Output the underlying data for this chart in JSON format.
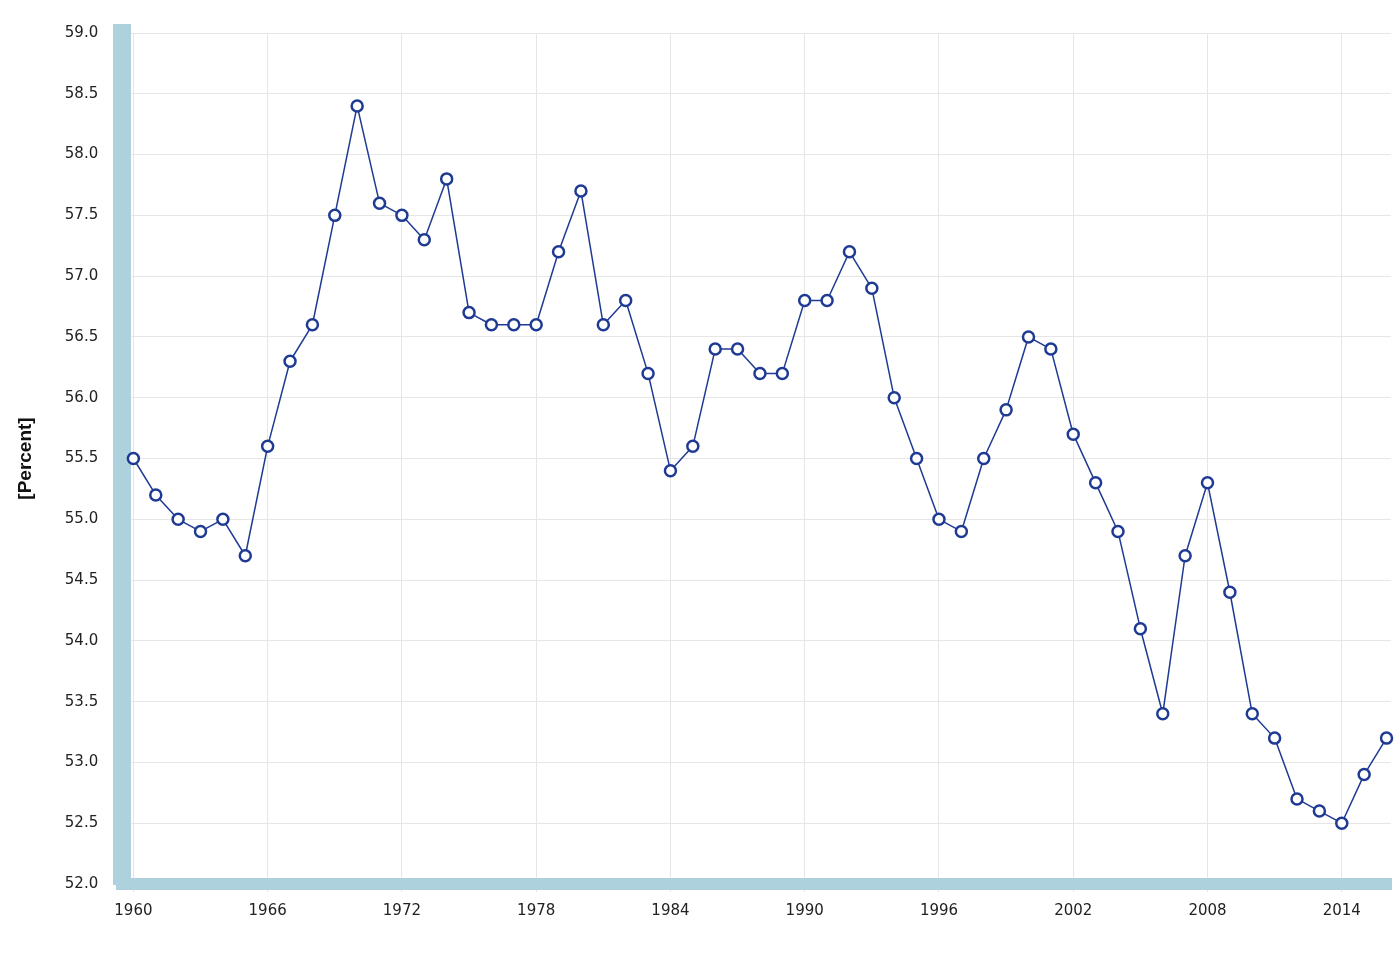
{
  "chart_data": {
    "type": "line",
    "ylabel": "[Percent]",
    "x": [
      1960,
      1961,
      1962,
      1963,
      1964,
      1965,
      1966,
      1967,
      1968,
      1969,
      1970,
      1971,
      1972,
      1973,
      1974,
      1975,
      1976,
      1977,
      1978,
      1979,
      1980,
      1981,
      1982,
      1983,
      1984,
      1985,
      1986,
      1987,
      1988,
      1989,
      1990,
      1991,
      1992,
      1993,
      1994,
      1995,
      1996,
      1997,
      1998,
      1999,
      2000,
      2001,
      2002,
      2003,
      2004,
      2005,
      2006,
      2007,
      2008,
      2009,
      2010,
      2011,
      2012,
      2013,
      2014,
      2015,
      2016
    ],
    "series": [
      {
        "color": "#1f3a93",
        "values": [
          55.5,
          55.2,
          55.0,
          54.9,
          55.0,
          54.7,
          55.6,
          56.3,
          56.6,
          57.5,
          58.4,
          57.6,
          57.5,
          57.3,
          57.8,
          56.7,
          56.6,
          56.6,
          56.6,
          57.2,
          57.7,
          56.6,
          56.8,
          56.2,
          55.4,
          55.6,
          56.4,
          56.4,
          56.2,
          56.2,
          56.8,
          56.8,
          57.2,
          56.9,
          56.0,
          55.5,
          55.0,
          54.9,
          55.5,
          55.9,
          56.5,
          56.4,
          55.7,
          55.3,
          54.9,
          54.1,
          53.4,
          54.7,
          55.3,
          54.4,
          53.4,
          53.2,
          52.7,
          52.6,
          52.5,
          52.9,
          53.2
        ]
      }
    ],
    "xlim": [
      1959.5,
      2016.2
    ],
    "xticks": [
      1960,
      1966,
      1972,
      1978,
      1984,
      1990,
      1996,
      2002,
      2008,
      2014
    ],
    "ylim": [
      52,
      59
    ],
    "yticks": [
      {
        "value": 52,
        "label": "52.0"
      },
      {
        "value": 52.5,
        "label": "52.5"
      },
      {
        "value": 53,
        "label": "53.0"
      },
      {
        "value": 53.5,
        "label": "53.5"
      },
      {
        "value": 54,
        "label": "54.0"
      },
      {
        "value": 54.5,
        "label": "54.5"
      },
      {
        "value": 55,
        "label": "55.0"
      },
      {
        "value": 55.5,
        "label": "55.5"
      },
      {
        "value": 56,
        "label": "56.0"
      },
      {
        "value": 56.5,
        "label": "56.5"
      },
      {
        "value": 57,
        "label": "57.0"
      },
      {
        "value": 57.5,
        "label": "57.5"
      },
      {
        "value": 58,
        "label": "58.0"
      },
      {
        "value": 58.5,
        "label": "58.5"
      },
      {
        "value": 59,
        "label": "59.0"
      }
    ],
    "grid": true,
    "legend": false,
    "marker": "circle",
    "line_style": "solid"
  }
}
